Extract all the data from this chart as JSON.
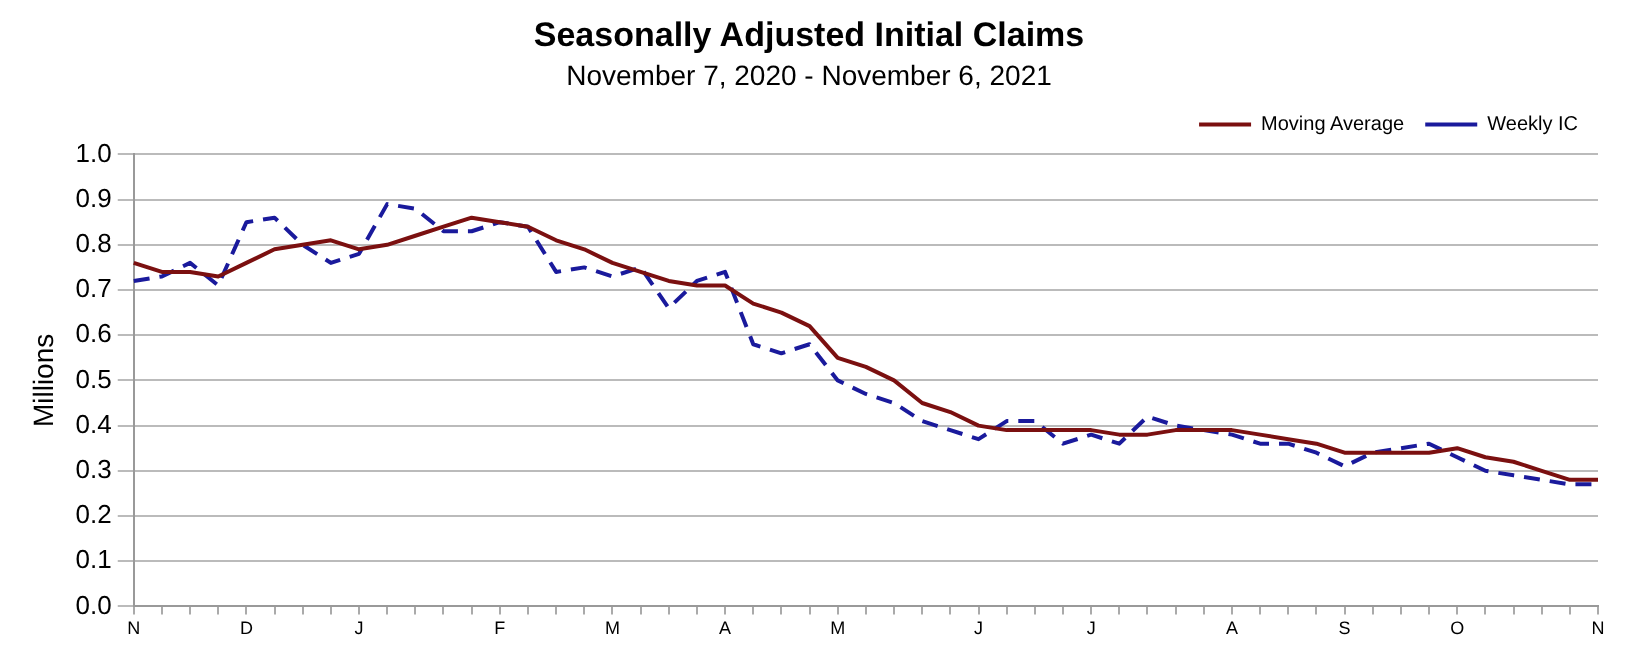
{
  "chart_data": {
    "type": "line",
    "title": "Seasonally Adjusted Initial Claims",
    "subtitle": "November 7, 2020 - November 6, 2021",
    "ylabel": "Millions",
    "categories": [
      "N",
      null,
      null,
      null,
      "D",
      null,
      null,
      null,
      "J",
      null,
      null,
      null,
      null,
      "F",
      null,
      null,
      null,
      "M",
      null,
      null,
      null,
      "A",
      null,
      null,
      null,
      "M",
      null,
      null,
      null,
      null,
      "J",
      null,
      null,
      null,
      "J",
      null,
      null,
      null,
      null,
      "A",
      null,
      null,
      null,
      "S",
      null,
      null,
      null,
      "O",
      null,
      null,
      null,
      null,
      "N"
    ],
    "series": [
      {
        "name": "Moving Average",
        "color": "#7b1010",
        "line_style": "solid",
        "values": [
          0.76,
          0.74,
          0.74,
          0.73,
          0.76,
          0.79,
          0.8,
          0.81,
          0.79,
          0.8,
          0.82,
          0.84,
          0.86,
          0.85,
          0.84,
          0.81,
          0.79,
          0.76,
          0.74,
          0.72,
          0.71,
          0.71,
          0.67,
          0.65,
          0.62,
          0.55,
          0.53,
          0.5,
          0.45,
          0.43,
          0.4,
          0.39,
          0.39,
          0.39,
          0.39,
          0.38,
          0.38,
          0.39,
          0.39,
          0.39,
          0.38,
          0.37,
          0.36,
          0.34,
          0.34,
          0.34,
          0.34,
          0.35,
          0.33,
          0.32,
          0.3,
          0.28,
          0.28
        ]
      },
      {
        "name": "Weekly IC",
        "color": "#1a1a9c",
        "line_style": "dashed",
        "values": [
          0.72,
          0.73,
          0.76,
          0.71,
          0.85,
          0.86,
          0.8,
          0.76,
          0.78,
          0.89,
          0.88,
          0.83,
          0.83,
          0.85,
          0.84,
          0.74,
          0.75,
          0.73,
          0.75,
          0.66,
          0.72,
          0.74,
          0.58,
          0.56,
          0.58,
          0.5,
          0.47,
          0.45,
          0.41,
          0.39,
          0.37,
          0.41,
          0.41,
          0.36,
          0.38,
          0.36,
          0.42,
          0.4,
          0.39,
          0.38,
          0.36,
          0.36,
          0.34,
          0.31,
          0.34,
          0.35,
          0.36,
          0.33,
          0.3,
          0.29,
          0.28,
          0.27,
          0.27
        ]
      }
    ],
    "ylim": [
      0,
      1
    ],
    "yticks": [
      {
        "value": 0,
        "label": "0.0"
      },
      0.1,
      0.2,
      0.3,
      0.4,
      0.5,
      0.6,
      0.7,
      0.8,
      0.9,
      {
        "value": 1,
        "label": "1.0"
      }
    ],
    "grid": "y",
    "legend": "top right",
    "marker": "none"
  }
}
